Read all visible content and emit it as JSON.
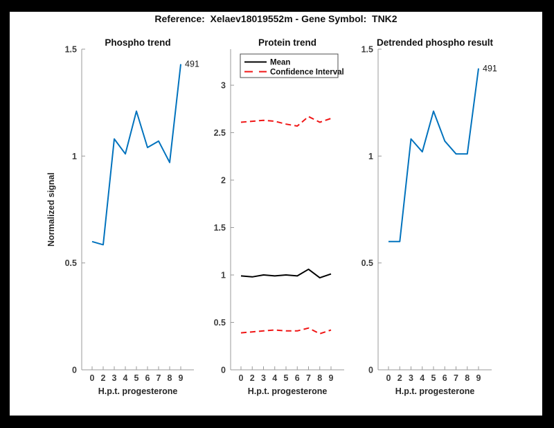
{
  "figure": {
    "title": "Reference:  Xelaev18019552m - Gene Symbol:  TNK2",
    "background": "#000000",
    "canvas_color": "#ffffff"
  },
  "style": {
    "accent_blue": "#0072bd",
    "ci_red": "#f01414",
    "mean_black": "#000000",
    "axis_color": "#999999",
    "tick_label_color": "#3d3d3d",
    "text_color": "#1a1a1a"
  },
  "chart_data": [
    {
      "id": "phospho-trend",
      "type": "line",
      "title": "Phospho trend",
      "xlabel": "H.p.t. progesterone",
      "ylabel": "Normalized signal",
      "categories": [
        "0",
        "2",
        "3",
        "4",
        "5",
        "6",
        "7",
        "8",
        "9"
      ],
      "ylim": [
        0,
        1.5
      ],
      "yticks": [
        0,
        0.5,
        1,
        1.5
      ],
      "ytick_labels": [
        "0",
        "0.5",
        "1",
        "1.5"
      ],
      "grid": false,
      "legend": null,
      "series": [
        {
          "name": "phospho-signal",
          "color": "#0072bd",
          "dash": false,
          "width": 2,
          "values": [
            0.6,
            0.585,
            1.08,
            1.01,
            1.21,
            1.04,
            1.07,
            0.97,
            1.43
          ]
        }
      ],
      "annotation": {
        "text": "491",
        "series": 0,
        "point": 8
      }
    },
    {
      "id": "protein-trend",
      "type": "line",
      "title": "Protein trend",
      "xlabel": "H.p.t. progesterone",
      "ylabel": null,
      "categories": [
        "0",
        "2",
        "3",
        "4",
        "5",
        "6",
        "7",
        "8",
        "9"
      ],
      "ylim": [
        0,
        3.38
      ],
      "yticks": [
        0,
        0.5,
        1,
        1.5,
        2,
        2.5,
        3
      ],
      "ytick_labels": [
        "0",
        "0.5",
        "1",
        "1.5",
        "2",
        "2.5",
        "3"
      ],
      "grid": false,
      "legend": {
        "position": "top-left",
        "entries": [
          "Mean",
          "Confidence Interval"
        ]
      },
      "series": [
        {
          "name": "mean",
          "legend": "Mean",
          "color": "#000000",
          "dash": false,
          "width": 2,
          "values": [
            0.99,
            0.98,
            1.0,
            0.99,
            1.0,
            0.99,
            1.06,
            0.97,
            1.01
          ]
        },
        {
          "name": "ci-upper",
          "legend": "Confidence Interval",
          "color": "#f01414",
          "dash": true,
          "width": 2,
          "values": [
            2.61,
            2.62,
            2.63,
            2.62,
            2.59,
            2.57,
            2.67,
            2.61,
            2.65
          ]
        },
        {
          "name": "ci-lower",
          "color": "#f01414",
          "dash": true,
          "width": 2,
          "values": [
            0.39,
            0.4,
            0.41,
            0.42,
            0.41,
            0.41,
            0.44,
            0.38,
            0.42
          ]
        }
      ],
      "annotation": null
    },
    {
      "id": "detrended-result",
      "type": "line",
      "title": "Detrended phospho result",
      "xlabel": "H.p.t. progesterone",
      "ylabel": null,
      "categories": [
        "0",
        "2",
        "3",
        "4",
        "5",
        "6",
        "7",
        "8",
        "9"
      ],
      "ylim": [
        0,
        1.5
      ],
      "yticks": [
        0,
        0.5,
        1,
        1.5
      ],
      "ytick_labels": [
        "0",
        "0.5",
        "1",
        "1.5"
      ],
      "grid": false,
      "legend": null,
      "series": [
        {
          "name": "detrended-signal",
          "color": "#0072bd",
          "dash": false,
          "width": 2,
          "values": [
            0.6,
            0.6,
            1.08,
            1.02,
            1.21,
            1.07,
            1.01,
            1.01,
            1.41
          ]
        }
      ],
      "annotation": {
        "text": "491",
        "series": 0,
        "point": 8
      }
    }
  ]
}
